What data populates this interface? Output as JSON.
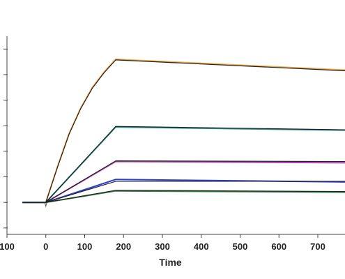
{
  "chart_data": {
    "type": "line",
    "title": "",
    "xlabel": "Time",
    "ylabel": "",
    "xlim": [
      -100,
      770
    ],
    "ylim": [
      -25,
      130
    ],
    "x_ticks": [
      -100,
      0,
      100,
      200,
      300,
      400,
      500,
      600,
      700
    ],
    "x_tick_labels": [
      "100",
      "0",
      "100",
      "200",
      "300",
      "400",
      "500",
      "600",
      "700"
    ],
    "y_ticks": [
      -20,
      0,
      20,
      40,
      60,
      80,
      100,
      120
    ],
    "grid": false,
    "legend": "none",
    "series": [
      {
        "color": "#f2a33c",
        "x": [
          -60,
          0,
          30,
          60,
          90,
          120,
          150,
          180,
          770
        ],
        "y": [
          0,
          0,
          28,
          54,
          74,
          90,
          102,
          112,
          103.5
        ]
      },
      {
        "color": "#1e8f8f",
        "x": [
          -60,
          0,
          180,
          770
        ],
        "y": [
          0,
          0,
          59,
          56.5
        ]
      },
      {
        "color": "#b03cb8",
        "x": [
          -60,
          0,
          180,
          770
        ],
        "y": [
          0,
          0,
          32,
          31
        ]
      },
      {
        "color": "#2b3fd1",
        "x": [
          -60,
          0,
          180,
          770
        ],
        "y": [
          0,
          0,
          18,
          16
        ]
      },
      {
        "color": "#2d7d3a",
        "x": [
          -60,
          0,
          180,
          770
        ],
        "y": [
          0,
          0,
          9,
          8
        ]
      }
    ],
    "fit_color": "#222222",
    "fits": [
      {
        "x": [
          -60,
          0,
          30,
          60,
          90,
          120,
          150,
          180,
          770
        ],
        "y": [
          0,
          0,
          27.5,
          53.5,
          73.5,
          89.5,
          101.5,
          111.5,
          103
        ]
      },
      {
        "x": [
          -60,
          0,
          180,
          770
        ],
        "y": [
          0,
          0,
          59.5,
          56.8
        ]
      },
      {
        "x": [
          -60,
          0,
          180,
          770
        ],
        "y": [
          0,
          0,
          32.5,
          32
        ]
      },
      {
        "x": [
          -60,
          0,
          180,
          770
        ],
        "y": [
          0,
          0,
          16.5,
          16.5
        ]
      },
      {
        "x": [
          -60,
          0,
          180,
          770
        ],
        "y": [
          0,
          0,
          9.5,
          8.5
        ]
      }
    ]
  }
}
